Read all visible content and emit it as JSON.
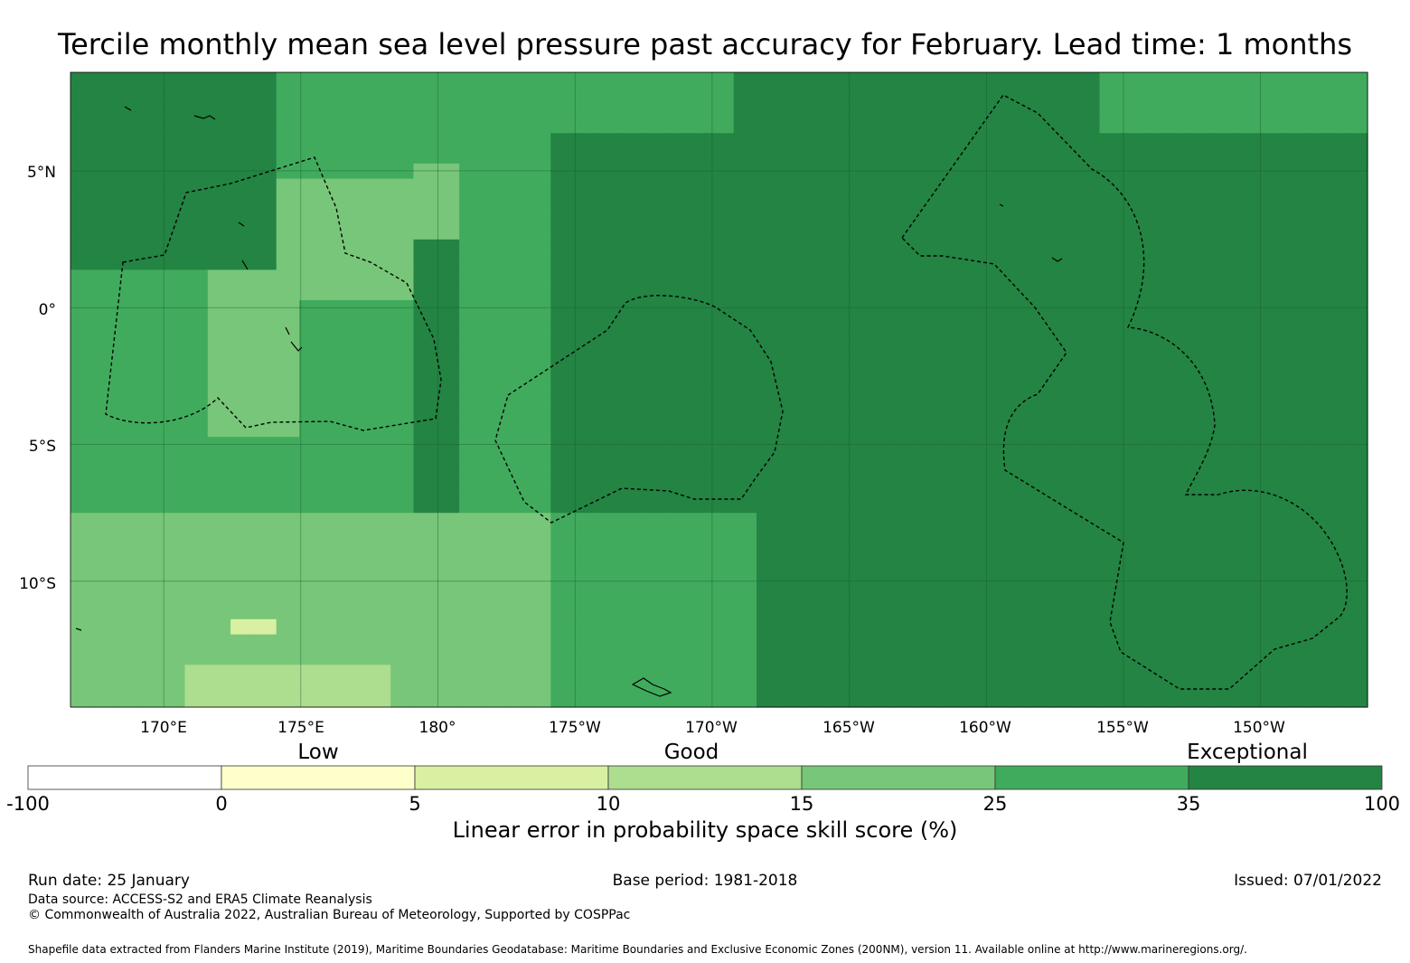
{
  "title": "Tercile monthly mean sea level pressure past accuracy for February. Lead time: 1 months",
  "map": {
    "lat_ticks": [
      "5°N",
      "0°",
      "5°S",
      "10°S"
    ],
    "lon_ticks": [
      "170°E",
      "175°E",
      "180°",
      "175°W",
      "170°W",
      "165°W",
      "160°W",
      "155°W",
      "150°W"
    ],
    "extent": {
      "lon_min_east": 166.6,
      "lon_max_east": 213.9,
      "lat_min": -14.6,
      "lat_max": 8.6
    },
    "lat_values": [
      5,
      0,
      -5,
      -10
    ],
    "lon_values": [
      170,
      175,
      180,
      185,
      190,
      195,
      200,
      205,
      210
    ]
  },
  "colorbar": {
    "category_labels": [
      "Low",
      "Good",
      "Exceptional"
    ],
    "boundaries": [
      "-100",
      "0",
      "5",
      "10",
      "15",
      "25",
      "35",
      "100"
    ],
    "colors": [
      "#ffffff",
      "#ffffcc",
      "#d9f0a3",
      "#addd8e",
      "#78c679",
      "#41ab5d",
      "#238443"
    ],
    "label": "Linear error in probability space skill score (%)"
  },
  "footer": {
    "run_date": "Run date: 25 January",
    "base_period": "Base period: 1981-2018",
    "issued": "Issued: 07/01/2022",
    "data_source": "Data source: ACCESS-S2 and ERA5 Climate Reanalysis",
    "copyright": "© Commonwealth of Australia 2022, Australian Bureau of Meteorology, Supported by COSPPac",
    "shapefile": "Shapefile data extracted from Flanders Marine Institute (2019), Maritime Boundaries Geodatabase: Maritime Boundaries and Exclusive Economic Zones (200NM), version 11. Available online at http://www.marineregions.org/."
  },
  "chart_data": {
    "type": "heatmap",
    "title": "Tercile monthly mean sea level pressure past accuracy for February. Lead time: 1 months",
    "value_label": "Linear error in probability space skill score (%)",
    "bins": [
      [
        -100,
        0
      ],
      [
        0,
        5
      ],
      [
        5,
        10
      ],
      [
        10,
        15
      ],
      [
        15,
        25
      ],
      [
        25,
        35
      ],
      [
        35,
        100
      ]
    ],
    "bin_labels": {
      "Low": "0-10",
      "Good": "10-25",
      "Exceptional": "35-100"
    },
    "regions": [
      {
        "area": "northwest (166-175°E, 2-8.6°N)",
        "bin": "35-100"
      },
      {
        "area": "northern central band (175°E-175°W, 5-8.6°N)",
        "bin": "25-35"
      },
      {
        "area": "Tuvalu/Kiribati west area (172-178°E, 0-5°N)",
        "bin": "15-25"
      },
      {
        "area": "southwest (166-185°E, 6-14.6°S)",
        "bin": "15-25"
      },
      {
        "area": "near 175°E, 13-14.6°S",
        "bin": "5-15"
      },
      {
        "area": "central-east (180-214°E, 8°N-14.6°S)",
        "bin": "35-100"
      }
    ]
  }
}
